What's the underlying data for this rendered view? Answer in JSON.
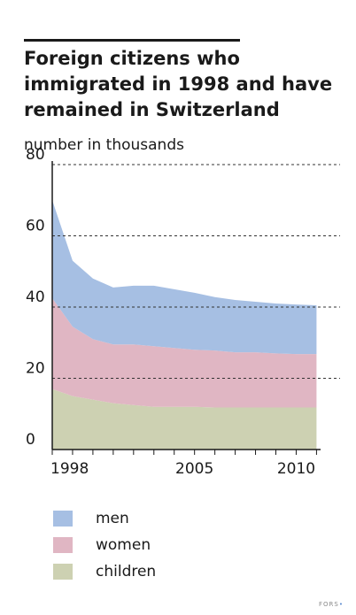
{
  "title": "Foreign citizens who immigrated in 1998 and have remained in Switzerland",
  "unit_label": "number in thousands",
  "logo": {
    "text": "FORS",
    "mark": "•"
  },
  "colors": {
    "men": "#a6bfe3",
    "women": "#e0b6c3",
    "children": "#cdd1b2",
    "axis": "#1a1a1a",
    "grid": "#333333"
  },
  "chart_data": {
    "type": "area",
    "stacked": true,
    "x": [
      1998,
      1999,
      2000,
      2001,
      2002,
      2003,
      2004,
      2005,
      2006,
      2007,
      2008,
      2009,
      2010,
      2011
    ],
    "xlim": [
      1998,
      2011.2
    ],
    "x_ticks": [
      1998,
      2005,
      2010
    ],
    "x_tick_labels": [
      "1998",
      "2005",
      "2010"
    ],
    "ylim": [
      0,
      80
    ],
    "y_ticks": [
      0,
      20,
      40,
      60,
      80
    ],
    "y_tick_labels": [
      "0",
      "20",
      "40",
      "60",
      "80"
    ],
    "grid": "horizontal-dashed",
    "legend_position": "bottom",
    "series": [
      {
        "name": "children",
        "values": [
          17,
          15,
          14,
          13,
          12.5,
          12,
          12,
          12,
          11.8,
          11.8,
          11.8,
          11.8,
          11.8,
          11.8
        ]
      },
      {
        "name": "women",
        "values": [
          25.5,
          19.5,
          17,
          16.5,
          17,
          17,
          16.5,
          16,
          16,
          15.5,
          15.5,
          15.2,
          15,
          15
        ]
      },
      {
        "name": "men",
        "values": [
          27.5,
          18.5,
          17,
          16,
          16.5,
          17,
          16.5,
          16,
          15,
          14.7,
          14.2,
          14,
          13.9,
          13.7
        ]
      }
    ]
  },
  "legend": [
    {
      "key": "men",
      "label": "men"
    },
    {
      "key": "women",
      "label": "women"
    },
    {
      "key": "children",
      "label": "children"
    }
  ]
}
